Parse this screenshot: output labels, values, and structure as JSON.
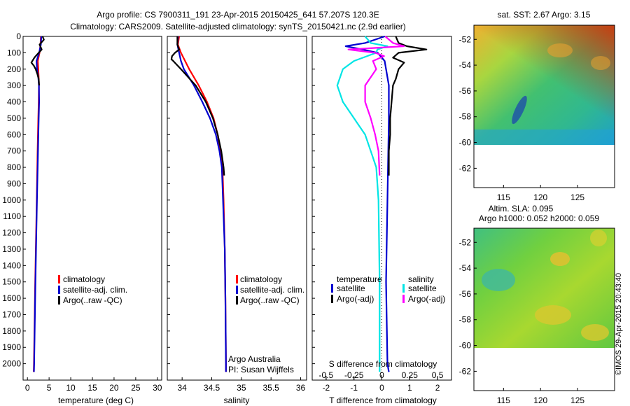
{
  "header": {
    "line1": "Argo profile: CS 7900311_191 23-Apr-2015 20150425_641 57.207S 120.3E",
    "line2": "Climatology: CARS2009. Satellite-adjusted climatology: synTS_20150421.nc (2.9d earlier)"
  },
  "colors": {
    "climatology": "#ff0000",
    "satellite": "#0000d0",
    "argo": "#000000",
    "satellite_salinity": "#00e5e5",
    "argo_salinity": "#ff00ff"
  },
  "chart_data": [
    {
      "type": "line",
      "panel": "temperature",
      "xlabel": "temperature (deg C)",
      "ylabel": "",
      "xlim": [
        -1,
        31
      ],
      "ylim": [
        2100,
        0
      ],
      "xticks": [
        "0",
        "5",
        "10",
        "15",
        "20",
        "25",
        "30"
      ],
      "yticks": [
        "0",
        "100",
        "200",
        "300",
        "400",
        "500",
        "600",
        "700",
        "800",
        "900",
        "1000",
        "1100",
        "1200",
        "1300",
        "1400",
        "1500",
        "1600",
        "1700",
        "1800",
        "1900",
        "2000"
      ],
      "legend": [
        "climatology",
        "satellite-adj. clim.",
        "Argo(..raw -QC)"
      ],
      "series": [
        {
          "name": "climatology",
          "depth": [
            0,
            50,
            100,
            150,
            200,
            250,
            300,
            400,
            500,
            700,
            1000,
            1500,
            2000,
            2050
          ],
          "values": [
            3.1,
            3.0,
            2.8,
            2.4,
            2.5,
            2.6,
            2.65,
            2.6,
            2.5,
            2.35,
            2.15,
            1.8,
            1.5,
            1.45
          ]
        },
        {
          "name": "satellite-adj. clim.",
          "depth": [
            0,
            50,
            100,
            150,
            200,
            250,
            300,
            400,
            500,
            700,
            1000,
            1500,
            2000,
            2050
          ],
          "values": [
            3.2,
            3.1,
            2.7,
            2.1,
            2.2,
            2.5,
            2.65,
            2.7,
            2.6,
            2.45,
            2.2,
            1.85,
            1.55,
            1.5
          ]
        },
        {
          "name": "Argo(..raw -QC)",
          "depth": [
            0,
            20,
            50,
            80,
            100,
            130,
            160,
            180,
            200,
            230,
            260,
            300
          ],
          "values": [
            3.5,
            3.8,
            2.8,
            3.3,
            2.6,
            1.6,
            0.9,
            1.5,
            1.9,
            2.3,
            2.6,
            2.7
          ]
        }
      ]
    },
    {
      "type": "line",
      "panel": "salinity",
      "xlabel": "salinity",
      "xlim": [
        33.75,
        36.1
      ],
      "ylim": [
        2100,
        0
      ],
      "xticks": [
        "34",
        "34.5",
        "35",
        "35.5",
        "36"
      ],
      "legend": [
        "climatology",
        "satellite-adj. clim.",
        "Argo(..raw -QC)"
      ],
      "annotation": [
        "Argo Australia",
        "PI: Susan Wijffels"
      ],
      "series": [
        {
          "name": "climatology",
          "depth": [
            0,
            50,
            100,
            150,
            200,
            300,
            400,
            500,
            600,
            700,
            800,
            1000,
            1300,
            1600,
            2000,
            2050
          ],
          "values": [
            33.95,
            33.93,
            33.98,
            34.05,
            34.12,
            34.28,
            34.42,
            34.53,
            34.6,
            34.65,
            34.68,
            34.7,
            34.72,
            34.73,
            34.74,
            34.74
          ]
        },
        {
          "name": "satellite-adj. clim.",
          "depth": [
            0,
            50,
            100,
            150,
            200,
            300,
            400,
            500,
            600,
            700,
            800,
            1000,
            1300,
            1600,
            2000,
            2050
          ],
          "values": [
            33.93,
            33.92,
            33.95,
            33.98,
            34.03,
            34.2,
            34.34,
            34.47,
            34.57,
            34.63,
            34.67,
            34.69,
            34.72,
            34.73,
            34.74,
            34.74
          ]
        },
        {
          "name": "Argo(..raw -QC)",
          "depth": [
            0,
            50,
            80,
            100,
            120,
            140,
            150,
            200,
            300,
            400,
            500,
            600,
            700,
            800,
            850
          ],
          "values": [
            33.92,
            33.92,
            33.95,
            33.88,
            33.83,
            33.82,
            33.85,
            33.98,
            34.23,
            34.4,
            34.52,
            34.6,
            34.66,
            34.7,
            34.71
          ]
        }
      ]
    },
    {
      "type": "line",
      "panel": "differences",
      "xlabel": "T difference from climatology",
      "xlabel_top": "S difference from climatology",
      "xlim": [
        -2.5,
        2.5
      ],
      "ylim": [
        2100,
        0
      ],
      "xticks": [
        "-2",
        "-1",
        "0",
        "1",
        "2"
      ],
      "xticks_salinity": [
        "-0.5",
        "-0.25",
        "0",
        "0.25",
        "0.5"
      ],
      "legend_headers": [
        "temperature",
        "salinity"
      ],
      "legend": [
        "satellite",
        "Argo(-adj)",
        "satellite",
        "Argo(-adj)"
      ],
      "series": [
        {
          "name": "satellite",
          "quantity": "temperature",
          "depth": [
            0,
            40,
            60,
            80,
            100,
            150,
            200,
            300,
            500,
            1000,
            1500,
            2000,
            2050
          ],
          "values": [
            0.1,
            -0.6,
            -1.3,
            -0.7,
            -0.15,
            0.1,
            0.15,
            0.25,
            0.25,
            0.2,
            0.15,
            0.2,
            0.25
          ]
        },
        {
          "name": "Argo(-adj)",
          "quantity": "temperature",
          "depth": [
            0,
            40,
            60,
            80,
            100,
            130,
            160,
            200,
            260,
            300,
            400,
            500,
            600,
            700,
            850
          ],
          "values": [
            0.5,
            0.6,
            0.9,
            1.6,
            0.6,
            0.4,
            0.8,
            0.6,
            0.5,
            0.4,
            0.35,
            0.3,
            0.3,
            0.25,
            0.25
          ]
        },
        {
          "name": "satellite",
          "quantity": "salinity",
          "depth": [
            0,
            40,
            60,
            80,
            100,
            150,
            200,
            300,
            400,
            500,
            600,
            700,
            800,
            1000,
            1500,
            2000,
            2050
          ],
          "values": [
            -0.15,
            -0.1,
            0.05,
            -0.04,
            -0.05,
            -0.25,
            -0.35,
            -0.4,
            -0.35,
            -0.25,
            -0.15,
            -0.1,
            -0.05,
            -0.03,
            -0.02,
            -0.02,
            -0.02
          ]
        },
        {
          "name": "Argo(-adj)",
          "quantity": "salinity",
          "depth": [
            0,
            40,
            60,
            80,
            100,
            120,
            150,
            200,
            300,
            400,
            500,
            600,
            700,
            850
          ],
          "values": [
            0.03,
            0.1,
            0.2,
            -0.3,
            -0.06,
            0.02,
            -0.08,
            -0.05,
            -0.15,
            -0.15,
            -0.1,
            -0.06,
            -0.03,
            -0.02
          ]
        }
      ]
    }
  ],
  "maps": [
    {
      "title": "sat. SST: 2.67 Argo: 3.15",
      "xlim": [
        111,
        130
      ],
      "ylim": [
        -63.5,
        -50.9
      ],
      "xticks": [
        "115",
        "120",
        "125"
      ],
      "yticks": [
        "-52",
        "-54",
        "-56",
        "-58",
        "-60",
        "-62"
      ],
      "data_south_limit": -60
    },
    {
      "title1": "Altim. SLA: 0.095",
      "title2": "Argo h1000: 0.052 h2000: 0.059",
      "xlim": [
        111,
        130
      ],
      "ylim": [
        -63.5,
        -50.9
      ],
      "xticks": [
        "115",
        "120",
        "125"
      ],
      "yticks": [
        "-52",
        "-54",
        "-56",
        "-58",
        "-60",
        "-62"
      ],
      "data_south_limit": -60
    }
  ],
  "footer": {
    "credit": "©IMOS 29-Apr-2015 20:43:40"
  }
}
